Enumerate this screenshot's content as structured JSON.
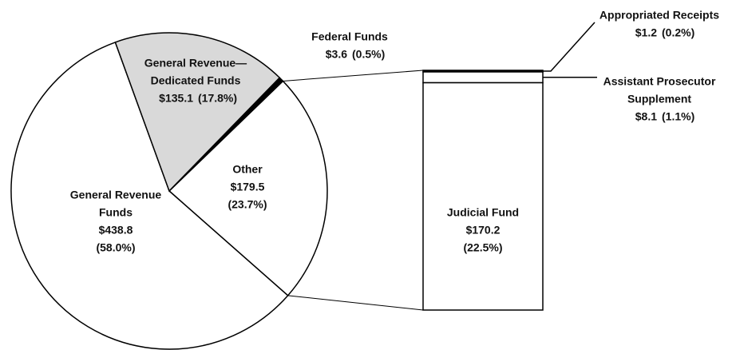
{
  "chart_data": {
    "type": "pie-of-bar",
    "pie": {
      "categories": [
        [
          "Other"
        ],
        [
          "General Revenue",
          "Funds"
        ],
        [
          "General Revenue—",
          "Dedicated Funds"
        ],
        [
          "Federal Funds"
        ]
      ],
      "values": [
        179.5,
        438.8,
        135.1,
        3.6
      ],
      "value_labels": [
        "$179.5",
        "$438.8",
        "$135.1",
        "$3.6"
      ],
      "percents": [
        23.7,
        58.0,
        17.8,
        0.5
      ],
      "percent_labels": [
        "(23.7%)",
        "(58.0%)",
        "(17.8%)",
        "(0.5%)"
      ],
      "colors": [
        "#ffffff",
        "#ffffff",
        "#d9d9d9",
        "#000000"
      ]
    },
    "bar": {
      "categories": [
        [
          "Appropriated Receipts"
        ],
        [
          "Assistant Prosecutor",
          "Supplement"
        ],
        [
          "Judicial Fund"
        ]
      ],
      "values": [
        1.2,
        8.1,
        170.2
      ],
      "value_labels": [
        "$1.2",
        "$8.1",
        "$170.2"
      ],
      "percents": [
        0.2,
        1.1,
        22.5
      ],
      "percent_labels": [
        "(0.2%)",
        "(1.1%)",
        "(22.5%)"
      ],
      "colors": [
        "#000000",
        "#ffffff",
        "#ffffff"
      ]
    }
  }
}
